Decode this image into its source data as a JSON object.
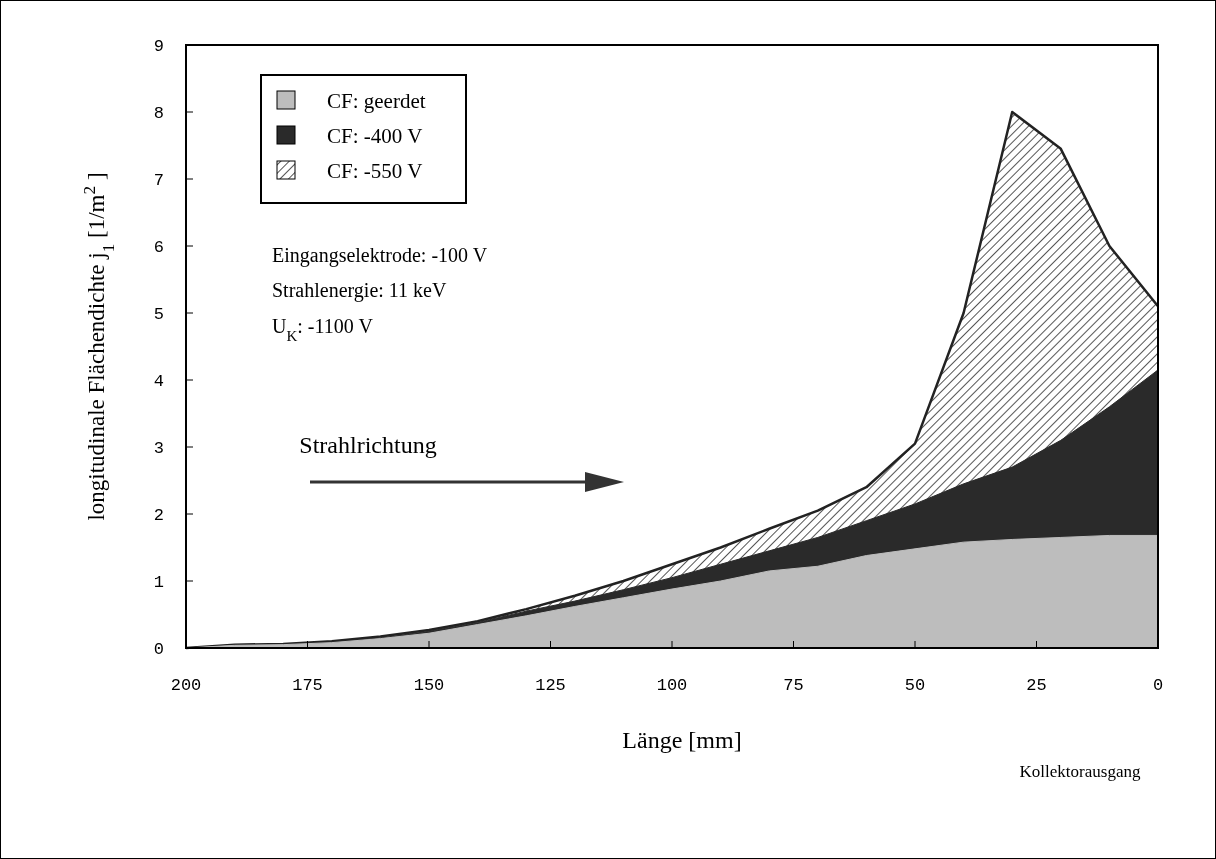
{
  "chart_data": {
    "type": "area",
    "xlabel": "Länge [mm]",
    "ylabel": "longitudinale Flächendichte  j$_{1}$    [1/m$^{2}$ ]",
    "x": [
      200,
      190,
      180,
      170,
      160,
      150,
      140,
      130,
      120,
      110,
      100,
      90,
      80,
      70,
      60,
      50,
      40,
      30,
      20,
      10,
      0
    ],
    "xlim": [
      200,
      0
    ],
    "xticks": [
      200,
      175,
      150,
      125,
      100,
      75,
      50,
      25,
      0
    ],
    "ylim": [
      0,
      9
    ],
    "yticks": [
      0,
      1,
      2,
      3,
      4,
      5,
      6,
      7,
      8,
      9
    ],
    "legend": "top left",
    "grid": false,
    "series": [
      {
        "name": "CF:  geerdet",
        "color": "#bdbdbd",
        "values": [
          0,
          0.04,
          0.05,
          0.08,
          0.14,
          0.22,
          0.35,
          0.48,
          0.62,
          0.75,
          0.88,
          1.0,
          1.15,
          1.22,
          1.38,
          1.48,
          1.58,
          1.62,
          1.65,
          1.68,
          1.68
        ]
      },
      {
        "name": "CF:  -400 V",
        "color": "#2a2a2a",
        "values": [
          0,
          0.04,
          0.05,
          0.09,
          0.15,
          0.25,
          0.38,
          0.55,
          0.7,
          0.87,
          1.05,
          1.25,
          1.45,
          1.65,
          1.9,
          2.15,
          2.45,
          2.7,
          3.1,
          3.6,
          4.15
        ]
      },
      {
        "name": "CF:  -550 V",
        "color": "#e0e0e0",
        "values": [
          0,
          0.05,
          0.06,
          0.1,
          0.17,
          0.27,
          0.4,
          0.58,
          0.78,
          1.0,
          1.25,
          1.5,
          1.78,
          2.05,
          2.4,
          3.05,
          5.0,
          8.0,
          7.45,
          6.0,
          5.1
        ]
      }
    ],
    "annotations": [
      "Eingangselektrode:  -100 V",
      "Strahlenergie:  11 keV",
      "U$_{K}$:  -1100 V",
      "Strahlrichtung",
      "Kollektorausgang"
    ]
  }
}
